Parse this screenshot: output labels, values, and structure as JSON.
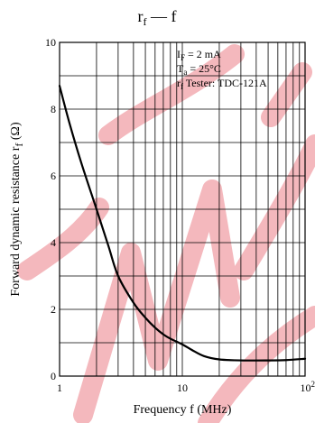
{
  "chart_data": {
    "type": "line",
    "title_main": "r",
    "title_sub": "f",
    "title_rest": " — f",
    "xlabel": "Frequency  f  (MHz)",
    "ylabel_main": "Forward dynamic resistance  r",
    "ylabel_sub": "f",
    "ylabel_unit": "  (Ω)",
    "x_scale": "log",
    "xlim": [
      1,
      100
    ],
    "ylim": [
      0,
      10
    ],
    "x_ticks": [
      {
        "value": 1,
        "label": "1"
      },
      {
        "value": 10,
        "label": "10"
      },
      {
        "value": 100,
        "label": "10",
        "exp": "2"
      }
    ],
    "y_ticks": [
      {
        "value": 0,
        "label": "0"
      },
      {
        "value": 2,
        "label": "2"
      },
      {
        "value": 4,
        "label": "4"
      },
      {
        "value": 6,
        "label": "6"
      },
      {
        "value": 8,
        "label": "8"
      },
      {
        "value": 10,
        "label": "10"
      }
    ],
    "y_grid_step": 1,
    "grid": true,
    "conditions": [
      {
        "main": "I",
        "sub": "F",
        "rest": " = 2 mA"
      },
      {
        "main": "T",
        "sub": "a",
        "rest": " = 25°C"
      },
      {
        "main": "r",
        "sub": "f",
        "rest": " Tester: TDC-121A"
      }
    ],
    "series": [
      {
        "x": [
          1,
          1.2,
          1.5,
          2,
          2.5,
          3,
          4,
          5,
          6,
          7,
          8,
          10,
          12,
          15,
          20,
          30,
          50,
          70,
          100
        ],
        "y": [
          8.7,
          7.6,
          6.4,
          5.0,
          3.9,
          3.0,
          2.2,
          1.75,
          1.45,
          1.25,
          1.12,
          0.95,
          0.78,
          0.6,
          0.5,
          0.47,
          0.47,
          0.48,
          0.52
        ]
      }
    ],
    "line_color": "#000000",
    "watermark_color": "#f4b8bd"
  }
}
